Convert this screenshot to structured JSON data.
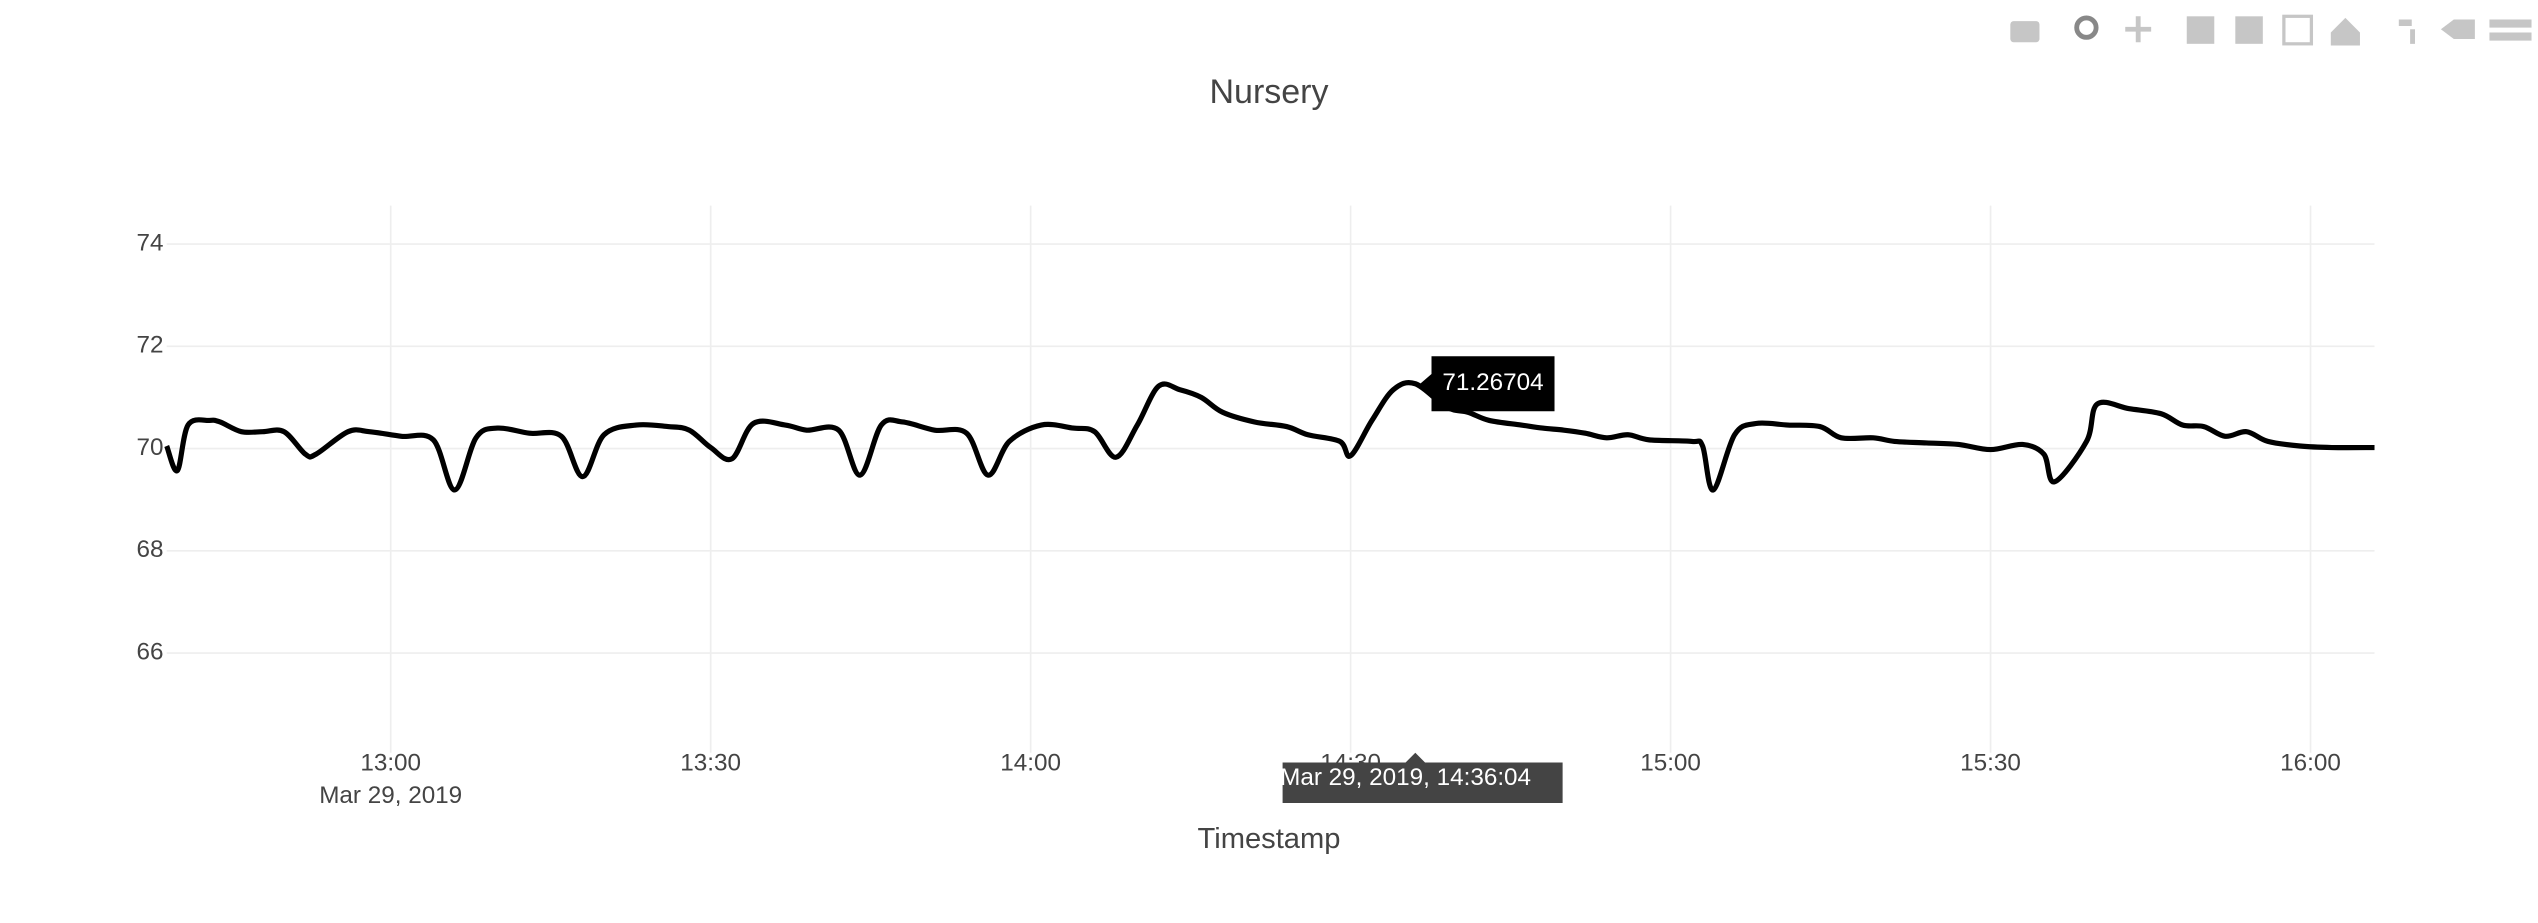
{
  "chart_data": {
    "type": "line",
    "title": "Nursery",
    "x_axis_title": "Timestamp",
    "x_date_label": "Mar 29, 2019",
    "xlim": [
      "2019-03-29 12:39",
      "2019-03-29 16:06"
    ],
    "xticks": [
      {
        "value": "2019-03-29 13:00",
        "label": "13:00"
      },
      {
        "value": "2019-03-29 13:30",
        "label": "13:30"
      },
      {
        "value": "2019-03-29 14:00",
        "label": "14:00"
      },
      {
        "value": "2019-03-29 14:30",
        "label": "14:30"
      },
      {
        "value": "2019-03-29 15:00",
        "label": "15:00"
      },
      {
        "value": "2019-03-29 15:30",
        "label": "15:30"
      },
      {
        "value": "2019-03-29 16:00",
        "label": "16:00"
      }
    ],
    "ylim": [
      64.05,
      74.75
    ],
    "yticks": [
      66,
      68,
      70,
      72,
      74
    ],
    "grid": true,
    "hover_value": "71.26704",
    "hover_x": "Mar 29, 2019, 14:36:04",
    "series": [
      {
        "color": "#000000",
        "x": [
          "2019-03-29 12:39",
          "2019-03-29 12:40",
          "2019-03-29 12:41",
          "2019-03-29 12:43",
          "2019-03-29 12:44",
          "2019-03-29 12:46",
          "2019-03-29 12:48",
          "2019-03-29 12:50",
          "2019-03-29 12:52",
          "2019-03-29 12:53",
          "2019-03-29 12:56",
          "2019-03-29 12:58",
          "2019-03-29 13:01",
          "2019-03-29 13:04",
          "2019-03-29 13:06",
          "2019-03-29 13:08",
          "2019-03-29 13:10",
          "2019-03-29 13:13",
          "2019-03-29 13:16",
          "2019-03-29 13:18",
          "2019-03-29 13:20",
          "2019-03-29 13:23",
          "2019-03-29 13:26",
          "2019-03-29 13:28",
          "2019-03-29 13:30",
          "2019-03-29 13:32",
          "2019-03-29 13:34",
          "2019-03-29 13:37",
          "2019-03-29 13:39",
          "2019-03-29 13:42",
          "2019-03-29 13:44",
          "2019-03-29 13:46",
          "2019-03-29 13:48",
          "2019-03-29 13:51",
          "2019-03-29 13:54",
          "2019-03-29 13:56",
          "2019-03-29 13:58",
          "2019-03-29 14:01",
          "2019-03-29 14:04",
          "2019-03-29 14:06",
          "2019-03-29 14:08",
          "2019-03-29 14:10",
          "2019-03-29 14:12",
          "2019-03-29 14:14",
          "2019-03-29 14:16",
          "2019-03-29 14:18",
          "2019-03-29 14:21",
          "2019-03-29 14:24",
          "2019-03-29 14:26",
          "2019-03-29 14:29",
          "2019-03-29 14:30",
          "2019-03-29 14:32",
          "2019-03-29 14:34",
          "2019-03-29 14:36:04",
          "2019-03-29 14:39",
          "2019-03-29 14:41",
          "2019-03-29 14:43",
          "2019-03-29 14:46",
          "2019-03-29 14:48",
          "2019-03-29 14:50",
          "2019-03-29 14:52",
          "2019-03-29 14:54",
          "2019-03-29 14:56",
          "2019-03-29 14:58",
          "2019-03-29 15:02",
          "2019-03-29 15:03",
          "2019-03-29 15:04",
          "2019-03-29 15:06",
          "2019-03-29 15:08",
          "2019-03-29 15:11",
          "2019-03-29 15:14",
          "2019-03-29 15:16",
          "2019-03-29 15:19",
          "2019-03-29 15:21",
          "2019-03-29 15:24",
          "2019-03-29 15:27",
          "2019-03-29 15:30",
          "2019-03-29 15:33",
          "2019-03-29 15:35",
          "2019-03-29 15:36",
          "2019-03-29 15:39",
          "2019-03-29 15:40",
          "2019-03-29 15:43",
          "2019-03-29 15:46",
          "2019-03-29 15:48",
          "2019-03-29 15:50",
          "2019-03-29 15:52",
          "2019-03-29 15:54",
          "2019-03-29 15:56",
          "2019-03-29 15:59",
          "2019-03-29 16:02",
          "2019-03-29 16:06"
        ],
        "values": [
          70.05,
          69.57,
          70.46,
          70.55,
          70.52,
          70.33,
          70.33,
          70.33,
          69.89,
          69.89,
          70.33,
          70.33,
          70.24,
          70.17,
          69.19,
          70.21,
          70.4,
          70.3,
          70.24,
          69.45,
          70.27,
          70.46,
          70.43,
          70.36,
          70.02,
          69.8,
          70.49,
          70.46,
          70.36,
          70.36,
          69.48,
          70.46,
          70.52,
          70.36,
          70.3,
          69.48,
          70.14,
          70.46,
          70.4,
          70.33,
          69.83,
          70.46,
          71.22,
          71.15,
          71.0,
          70.71,
          70.52,
          70.43,
          70.27,
          70.14,
          69.86,
          70.55,
          71.15,
          71.26704,
          70.81,
          70.71,
          70.55,
          70.46,
          70.4,
          70.36,
          70.3,
          70.21,
          70.27,
          70.17,
          70.14,
          70.05,
          69.19,
          70.27,
          70.49,
          70.46,
          70.43,
          70.21,
          70.21,
          70.14,
          70.11,
          70.08,
          69.98,
          70.08,
          69.89,
          69.35,
          70.14,
          70.87,
          70.78,
          70.68,
          70.46,
          70.43,
          70.24,
          70.33,
          70.14,
          70.05,
          70.02,
          70.02
        ]
      }
    ]
  }
}
